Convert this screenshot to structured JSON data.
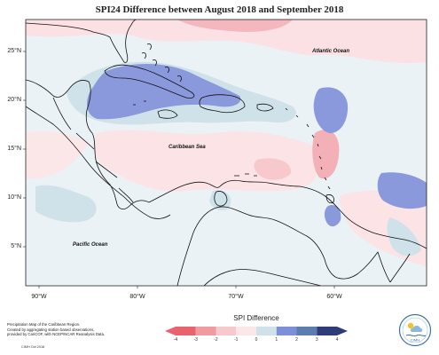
{
  "title": "SPI24 Difference between August 2018 and September 2018",
  "axes": {
    "y_ticks": [
      "25°N",
      "20°N",
      "15°N",
      "10°N",
      "5°N"
    ],
    "x_ticks": [
      "90°W",
      "80°W",
      "70°W",
      "60°W"
    ]
  },
  "labels": {
    "atlantic": "Atlantic Ocean",
    "caribbean": "Caribbean Sea",
    "pacific": "Pacific Ocean"
  },
  "legend": {
    "title": "SPI Difference",
    "ticks": [
      "-4",
      "-3",
      "-2",
      "-1",
      "0",
      "1",
      "2",
      "3",
      "4"
    ],
    "colors": [
      "#e8636e",
      "#f19aa0",
      "#f7c8cc",
      "#fbe6e8",
      "#ffffff",
      "#cfe2ea",
      "#7e8fd9",
      "#5b7db0",
      "#2f3c7a"
    ]
  },
  "footer": {
    "line1": "Precipitation Map of the Caribbean Region.",
    "line2": "Created by aggregating station based observations,",
    "line3": "provided by CariCOF, with NCEP/NCAR Reanalysis Data.",
    "credit": "CIMH Oct 2018"
  },
  "logo": {
    "text": "CIMH"
  }
}
